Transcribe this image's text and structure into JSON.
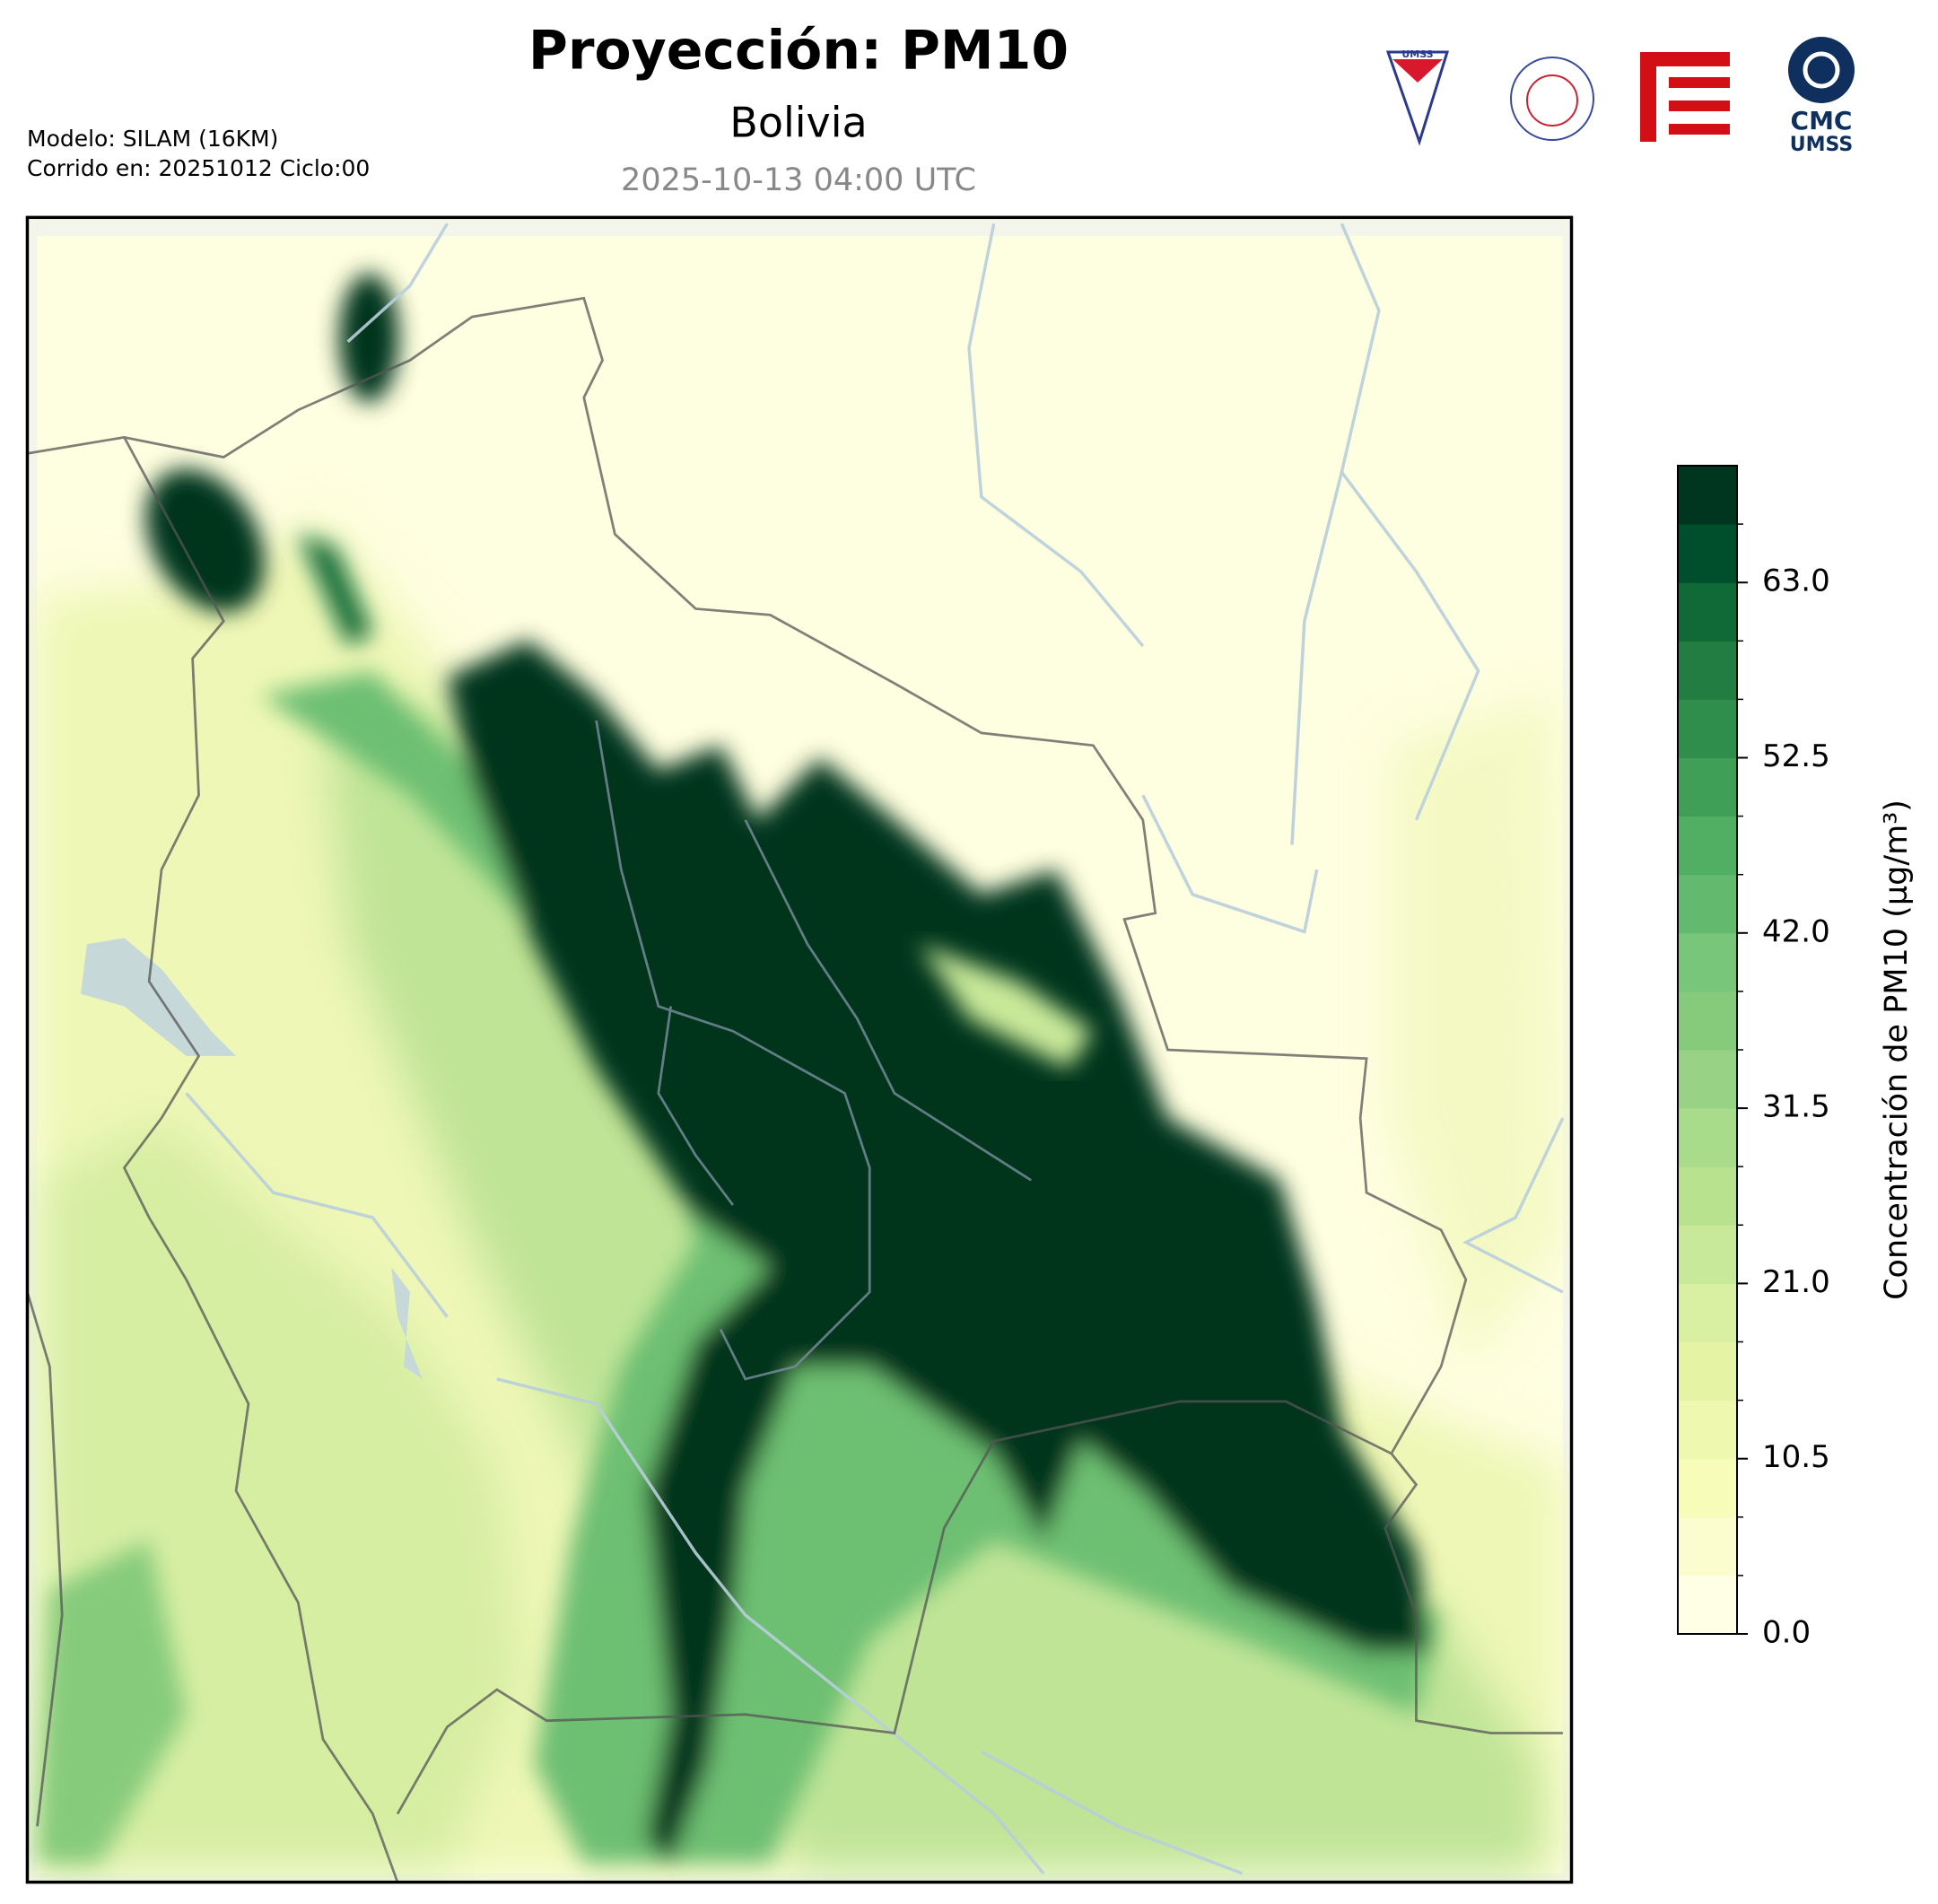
{
  "header": {
    "title": "Proyección: PM10",
    "subtitle": "Bolivia",
    "datetime": "2025-10-13 04:00 UTC",
    "model": "Modelo: SILAM (16KM)",
    "run": "Corrido en: 20251012 Ciclo:00"
  },
  "logos": {
    "umss": "UMSS",
    "cmc": "CMC",
    "cmc_sub": "UMSS"
  },
  "colorbar": {
    "label": "Concentración de PM10 (µg/m³)",
    "lim": [
      0,
      70
    ],
    "ticks": [
      {
        "value": 0,
        "label": "0.0"
      },
      10.5,
      {
        "value": 21,
        "label": "21.0"
      },
      31.5,
      {
        "value": 42,
        "label": "42.0"
      },
      52.5,
      {
        "value": 63,
        "label": "63.0"
      }
    ],
    "colors": [
      "#ffffe5",
      "#fbfdcf",
      "#f7fcb9",
      "#eef8ae",
      "#e4f4a4",
      "#d9f0a3",
      "#c9e99a",
      "#b9e28f",
      "#a8db8a",
      "#98d385",
      "#86cb7c",
      "#78c679",
      "#63ba6e",
      "#50af63",
      "#3f9f56",
      "#2f8e4b",
      "#217d41",
      "#0f6a38",
      "#004f2c",
      "#00351f"
    ]
  }
}
